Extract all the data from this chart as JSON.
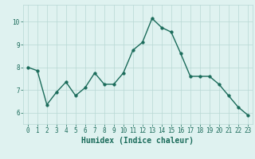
{
  "x": [
    0,
    1,
    2,
    3,
    4,
    5,
    6,
    7,
    8,
    9,
    10,
    11,
    12,
    13,
    14,
    15,
    16,
    17,
    18,
    19,
    20,
    21,
    22,
    23
  ],
  "y": [
    8.0,
    7.85,
    6.35,
    6.9,
    7.35,
    6.75,
    7.1,
    7.75,
    7.25,
    7.25,
    7.75,
    8.75,
    9.1,
    10.15,
    9.75,
    9.55,
    8.6,
    7.6,
    7.6,
    7.6,
    7.25,
    6.75,
    6.25,
    5.9
  ],
  "line_color": "#1a6b5a",
  "marker_color": "#1a6b5a",
  "bg_color": "#dff2f0",
  "grid_color": "#b8d8d4",
  "xlabel": "Humidex (Indice chaleur)",
  "ylim": [
    5.5,
    10.75
  ],
  "xlim": [
    -0.5,
    23.5
  ],
  "yticks": [
    6,
    7,
    8,
    9,
    10
  ],
  "xticks": [
    0,
    1,
    2,
    3,
    4,
    5,
    6,
    7,
    8,
    9,
    10,
    11,
    12,
    13,
    14,
    15,
    16,
    17,
    18,
    19,
    20,
    21,
    22,
    23
  ],
  "tick_fontsize": 5.5,
  "xlabel_fontsize": 7,
  "marker_size": 2.5,
  "line_width": 1.0
}
